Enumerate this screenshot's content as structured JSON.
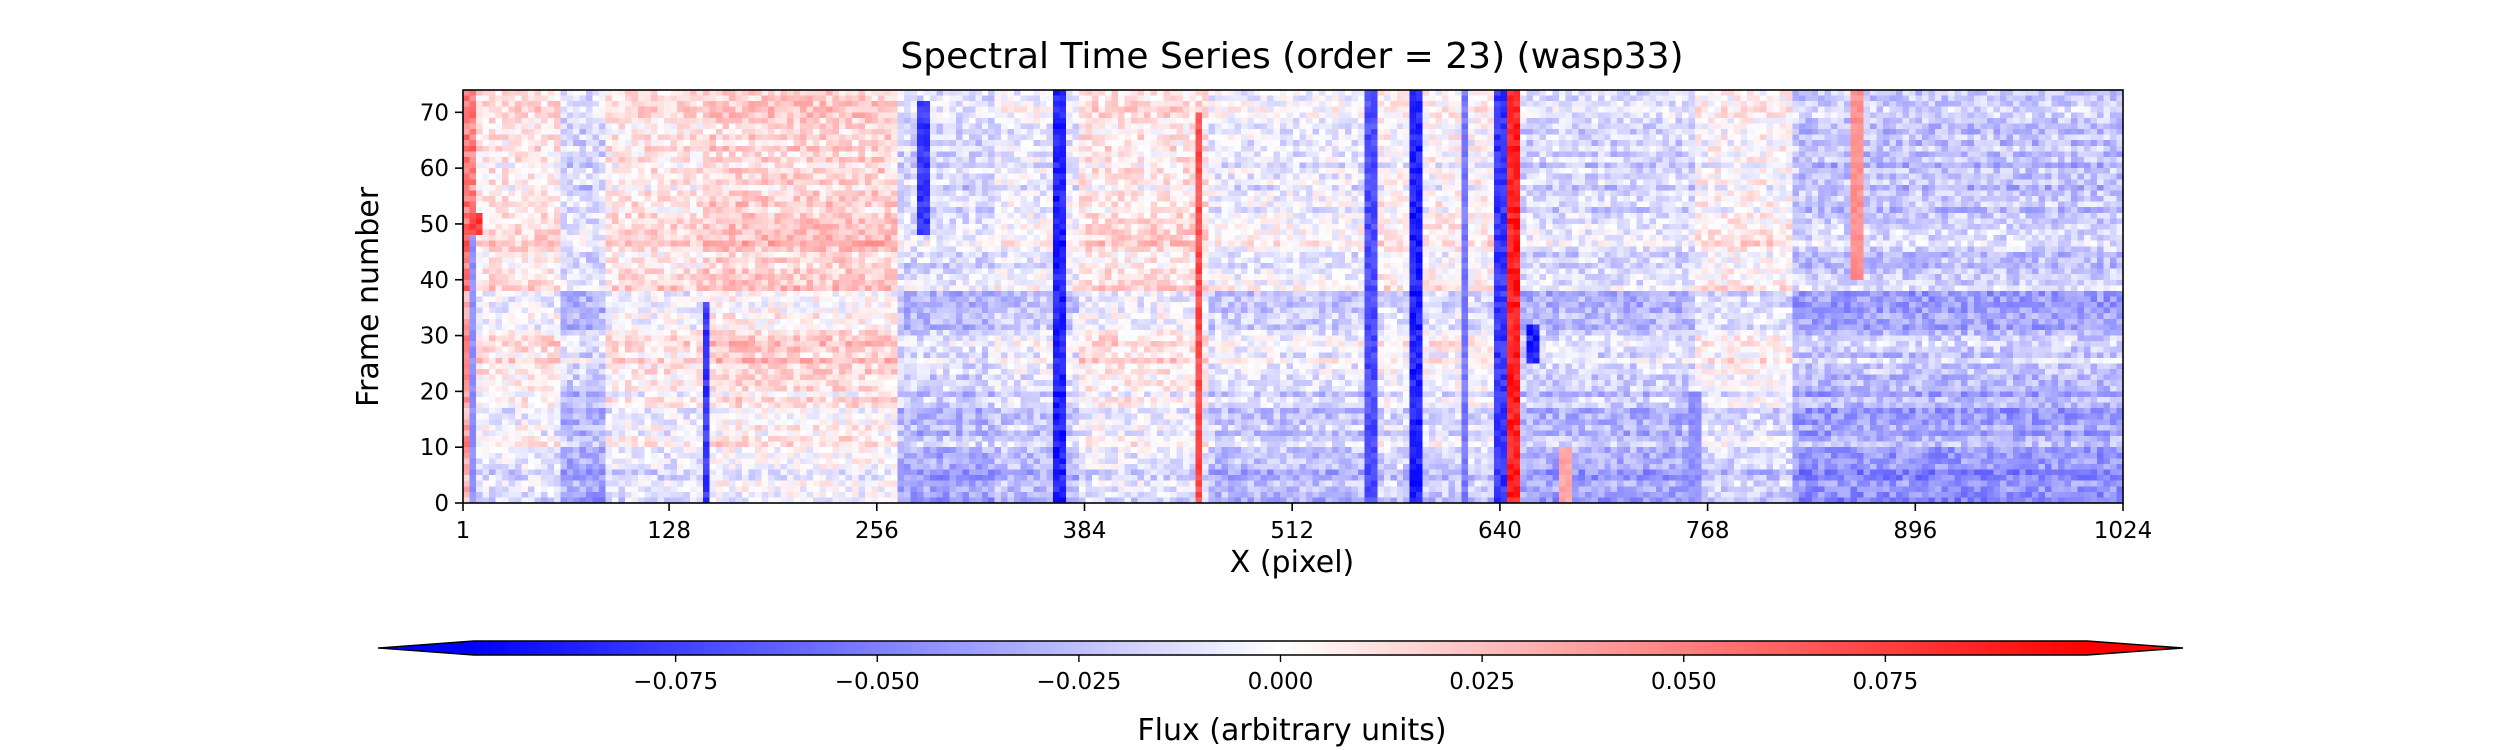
{
  "chart_data": {
    "type": "heatmap",
    "title": "Spectral Time Series (order = 23) (wasp33)",
    "xlabel": "X (pixel)",
    "ylabel": "Frame number",
    "xlim": [
      1,
      1024
    ],
    "ylim": [
      0,
      74
    ],
    "x_ticks": [
      1,
      128,
      256,
      384,
      512,
      640,
      768,
      896,
      1024
    ],
    "x_tick_labels": [
      "1",
      "128",
      "256",
      "384",
      "512",
      "640",
      "768",
      "896",
      "1024"
    ],
    "y_ticks": [
      0,
      10,
      20,
      30,
      40,
      50,
      60,
      70
    ],
    "y_tick_labels": [
      "0",
      "10",
      "20",
      "30",
      "40",
      "50",
      "60",
      "70"
    ],
    "grid": false,
    "colormap": "bwr",
    "colormap_stops": [
      "#0000ff",
      "#ffffff",
      "#ff0000"
    ],
    "vmin": -0.1,
    "vmax": 0.1,
    "colorbar": {
      "label": "Flux (arbitrary units)",
      "ticks": [
        -0.075,
        -0.05,
        -0.025,
        0.0,
        0.025,
        0.05,
        0.075
      ],
      "tick_labels": [
        "−0.075",
        "−0.050",
        "−0.025",
        "0.000",
        "0.025",
        "0.050",
        "0.075"
      ],
      "extend": "both",
      "orientation": "horizontal"
    },
    "n_columns": 1024,
    "n_frames": 74,
    "column_profile": [
      {
        "x": [
          1,
          10
        ],
        "value": 0.06
      },
      {
        "x": [
          10,
          60
        ],
        "value": 0.01
      },
      {
        "x": [
          60,
          90
        ],
        "value": -0.02
      },
      {
        "x": [
          90,
          150
        ],
        "value": 0.01
      },
      {
        "x": [
          150,
          270
        ],
        "value": 0.02
      },
      {
        "x": [
          270,
          330
        ],
        "value": -0.02
      },
      {
        "x": [
          330,
          380
        ],
        "value": -0.01
      },
      {
        "x": [
          380,
          460
        ],
        "value": 0.01
      },
      {
        "x": [
          460,
          560
        ],
        "value": -0.01
      },
      {
        "x": [
          560,
          630
        ],
        "value": 0.0
      },
      {
        "x": [
          640,
          760
        ],
        "value": -0.02
      },
      {
        "x": [
          760,
          820
        ],
        "value": 0.0
      },
      {
        "x": [
          820,
          1024
        ],
        "value": -0.03
      }
    ],
    "row_bands": [
      {
        "frames": [
          0,
          8
        ],
        "value": -0.04
      },
      {
        "frames": [
          8,
          22
        ],
        "value": -0.015
      },
      {
        "frames": [
          22,
          30
        ],
        "value": 0.01
      },
      {
        "frames": [
          30,
          38
        ],
        "value": -0.02
      },
      {
        "frames": [
          38,
          46
        ],
        "value": 0.005
      },
      {
        "frames": [
          46,
          52
        ],
        "value": 0.02
      },
      {
        "frames": [
          52,
          74
        ],
        "value": 0.0
      }
    ],
    "features": [
      {
        "x": 6,
        "width": 3,
        "value": -0.05,
        "frames": [
          0,
          50
        ]
      },
      {
        "x": 8,
        "width": 4,
        "value": 0.09,
        "frames": [
          48,
          52
        ]
      },
      {
        "x": 150,
        "width": 3,
        "value": -0.09,
        "frames": [
          0,
          36
        ]
      },
      {
        "x": 285,
        "width": 3,
        "value": -0.09,
        "frames": [
          48,
          72
        ]
      },
      {
        "x": 370,
        "width": 4,
        "value": -0.1,
        "frames": [
          0,
          74
        ]
      },
      {
        "x": 455,
        "width": 3,
        "value": 0.08,
        "frames": [
          0,
          70
        ]
      },
      {
        "x": 560,
        "width": 3,
        "value": -0.08,
        "frames": [
          0,
          74
        ]
      },
      {
        "x": 588,
        "width": 3,
        "value": -0.1,
        "frames": [
          0,
          74
        ]
      },
      {
        "x": 618,
        "width": 3,
        "value": -0.06,
        "frames": [
          0,
          74
        ]
      },
      {
        "x": 642,
        "width": 4,
        "value": -0.09,
        "frames": [
          0,
          74
        ]
      },
      {
        "x": 650,
        "width": 4,
        "value": 0.1,
        "frames": [
          0,
          74
        ]
      },
      {
        "x": 660,
        "width": 5,
        "value": -0.1,
        "frames": [
          25,
          32
        ]
      },
      {
        "x": 680,
        "width": 4,
        "value": 0.04,
        "frames": [
          0,
          10
        ]
      },
      {
        "x": 760,
        "width": 3,
        "value": -0.05,
        "frames": [
          0,
          20
        ]
      },
      {
        "x": 860,
        "width": 3,
        "value": 0.05,
        "frames": [
          40,
          74
        ]
      }
    ]
  }
}
